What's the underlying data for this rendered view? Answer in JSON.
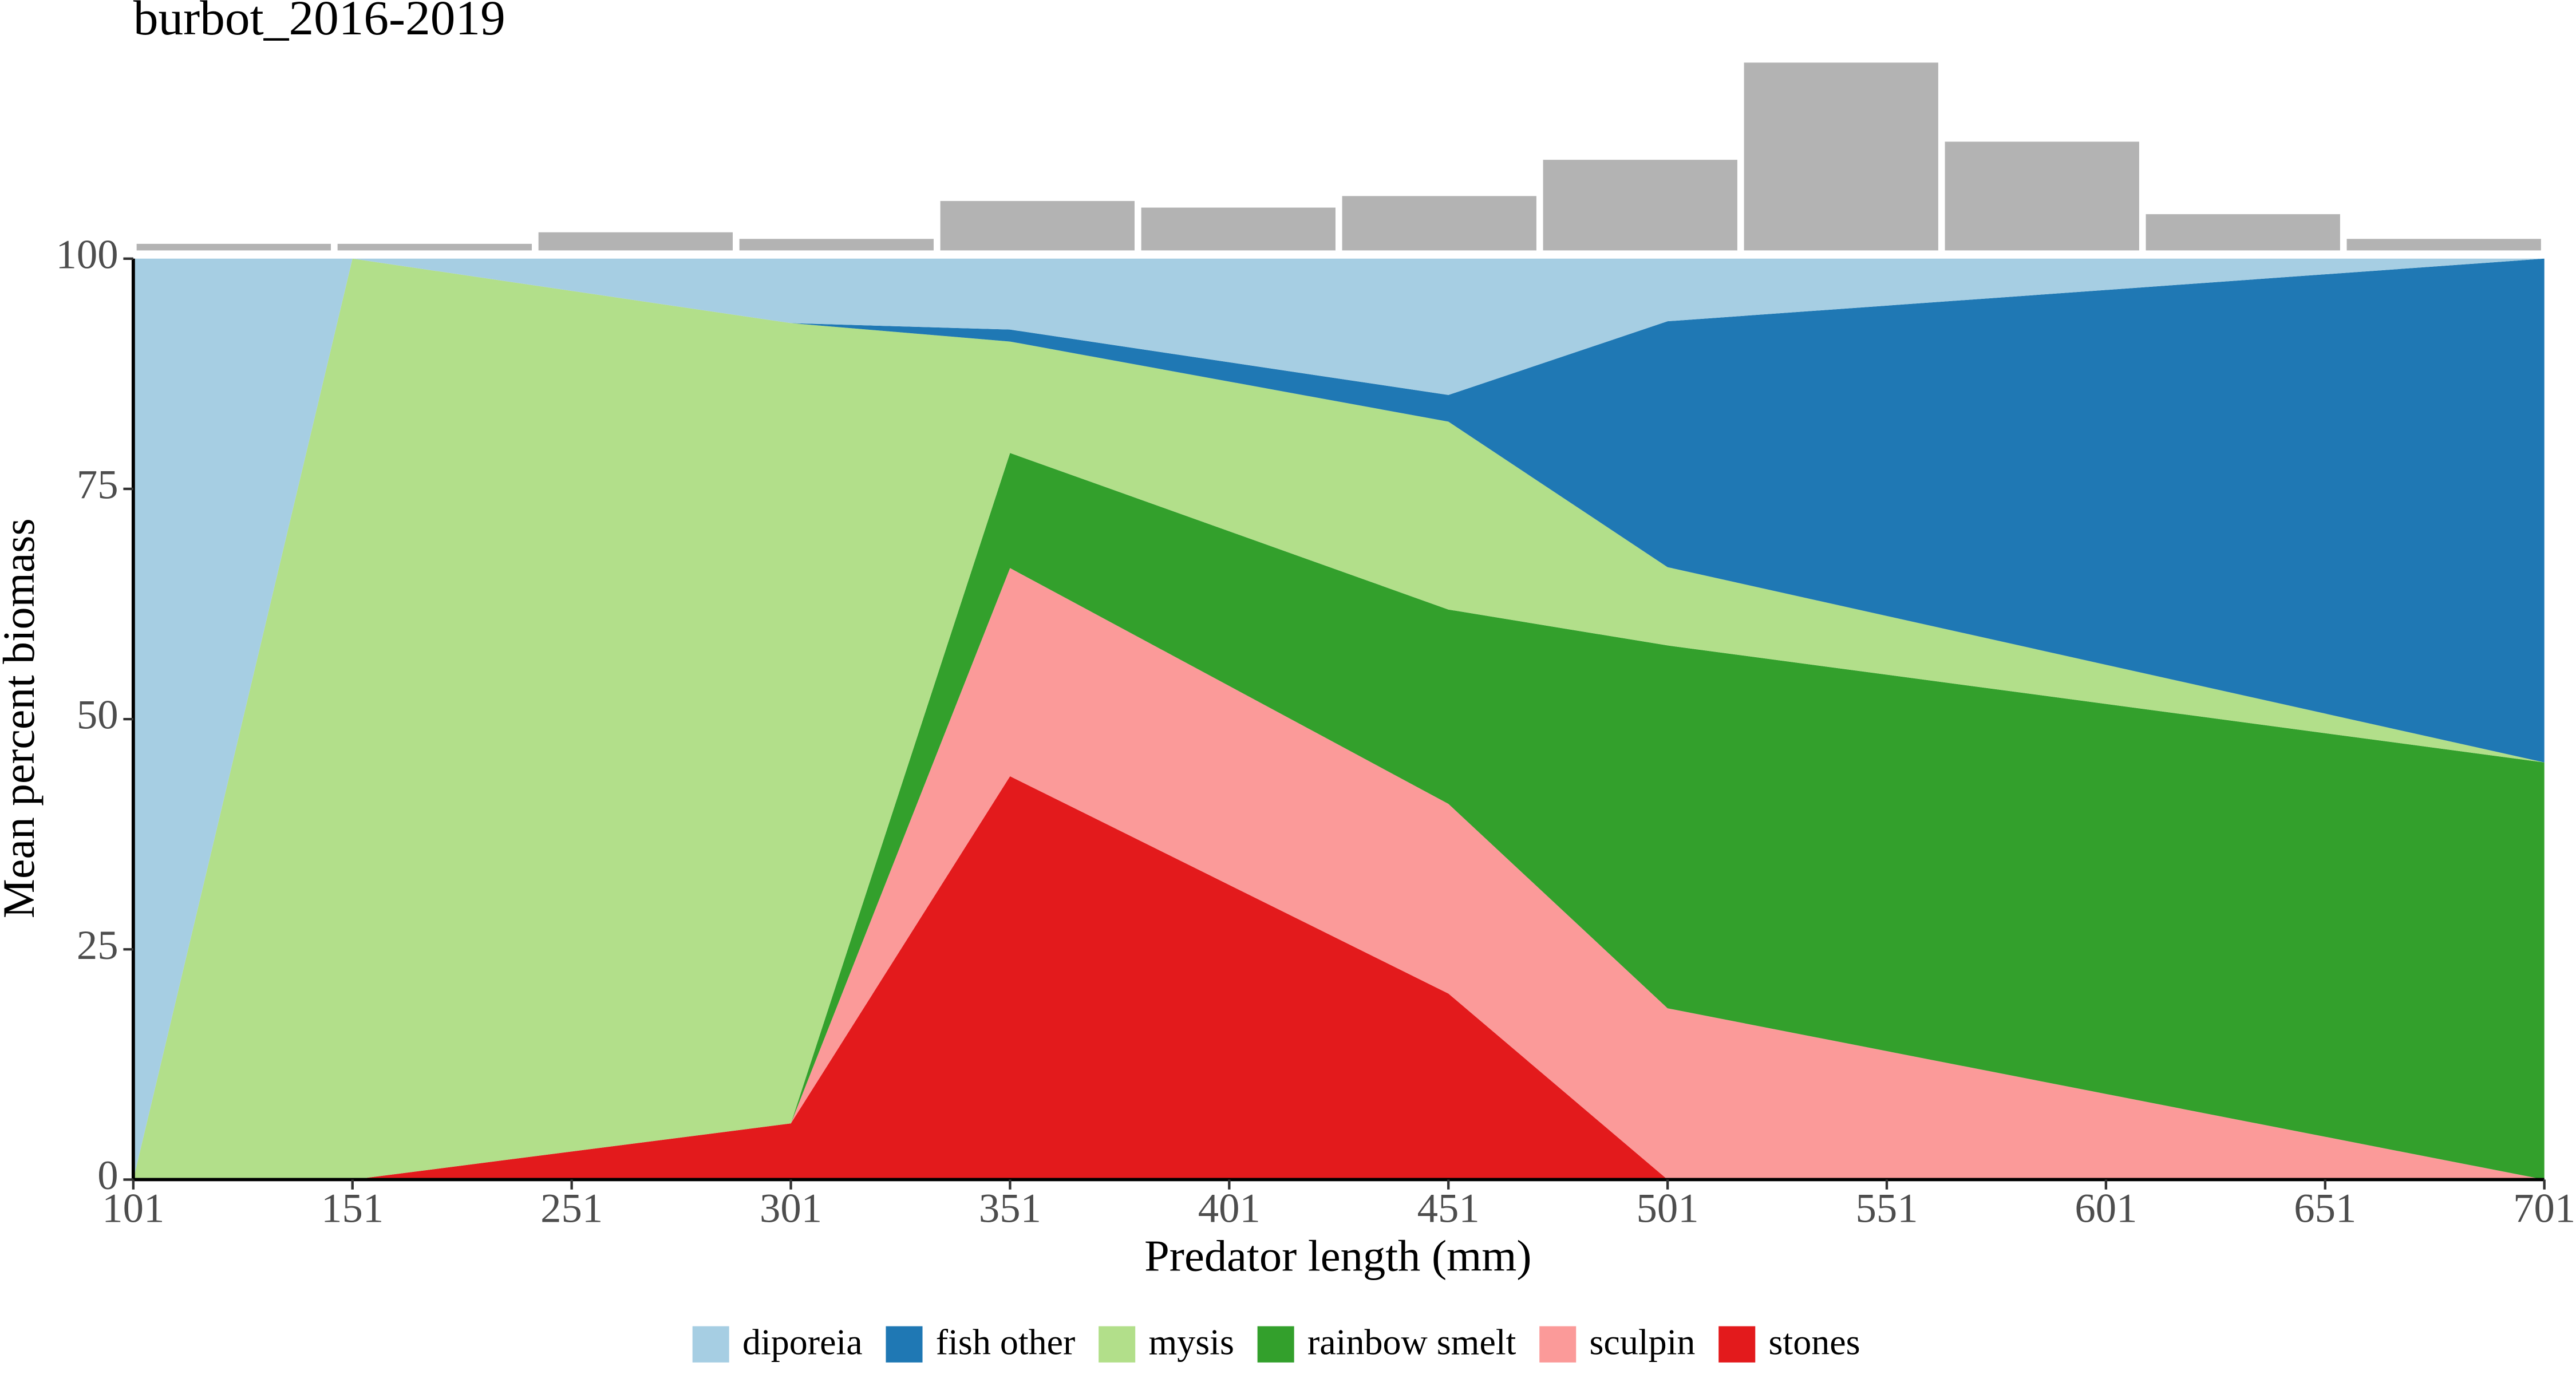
{
  "chart_data": {
    "type": "area",
    "stacked": true,
    "title": "burbot_2016-2019",
    "x_label": "Predator length (mm)",
    "y_label": "Mean percent biomass",
    "xticks": [
      "101",
      "151",
      "251",
      "301",
      "351",
      "401",
      "451",
      "501",
      "551",
      "601",
      "651",
      "701"
    ],
    "categories": [
      "101",
      "151",
      "301",
      "351",
      "451",
      "501",
      "701"
    ],
    "ylim": [
      0,
      100
    ],
    "yticks": [
      0,
      25,
      50,
      75,
      100
    ],
    "series": [
      {
        "name": "diporeia",
        "color": "#a6cee3",
        "values": [
          100,
          0,
          7,
          7.7,
          14.8,
          6.8,
          0
        ]
      },
      {
        "name": "fish other",
        "color": "#1f78b4",
        "values": [
          0,
          0,
          0,
          1.3,
          2.9,
          26.7,
          54.7
        ]
      },
      {
        "name": "mysis",
        "color": "#b2df8a",
        "values": [
          0,
          100,
          86.9,
          12.1,
          20.4,
          8.5,
          0
        ]
      },
      {
        "name": "rainbow smelt",
        "color": "#33a02c",
        "values": [
          0,
          0,
          0,
          12.5,
          21.1,
          39.4,
          45.3
        ]
      },
      {
        "name": "sculpin",
        "color": "#fb9a99",
        "values": [
          0,
          0,
          0,
          22.6,
          20.6,
          18.6,
          0
        ]
      },
      {
        "name": "stones",
        "color": "#e31a1c",
        "values": [
          0,
          0,
          6.1,
          43.8,
          20.2,
          0,
          0
        ]
      }
    ],
    "histogram": {
      "color": "#b3b3b3",
      "values": [
        4,
        4,
        11,
        7,
        30,
        26,
        33,
        55,
        114,
        66,
        22,
        7
      ]
    }
  }
}
